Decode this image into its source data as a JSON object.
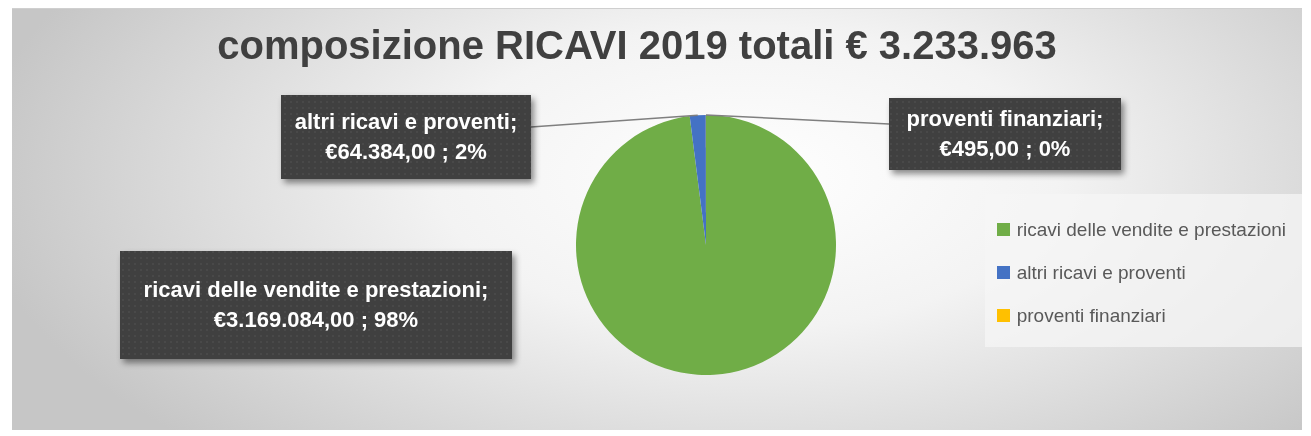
{
  "chart_data": {
    "type": "pie",
    "title": "composizione RICAVI 2019 totali € 3.233.963",
    "categories": [
      "ricavi delle vendite e prestazioni",
      "altri ricavi e proventi",
      "proventi finanziari"
    ],
    "values": [
      3169084,
      64384,
      495
    ],
    "colors": [
      "#70ad47",
      "#4472c4",
      "#ffc000"
    ],
    "value_labels": [
      "ricavi delle vendite e prestazioni; €3.169.084,00 ; 98%",
      "altri ricavi e proventi; €64.384,00 ; 2%",
      "proventi finanziari; €495,00 ; 0%"
    ],
    "legend": "right"
  }
}
